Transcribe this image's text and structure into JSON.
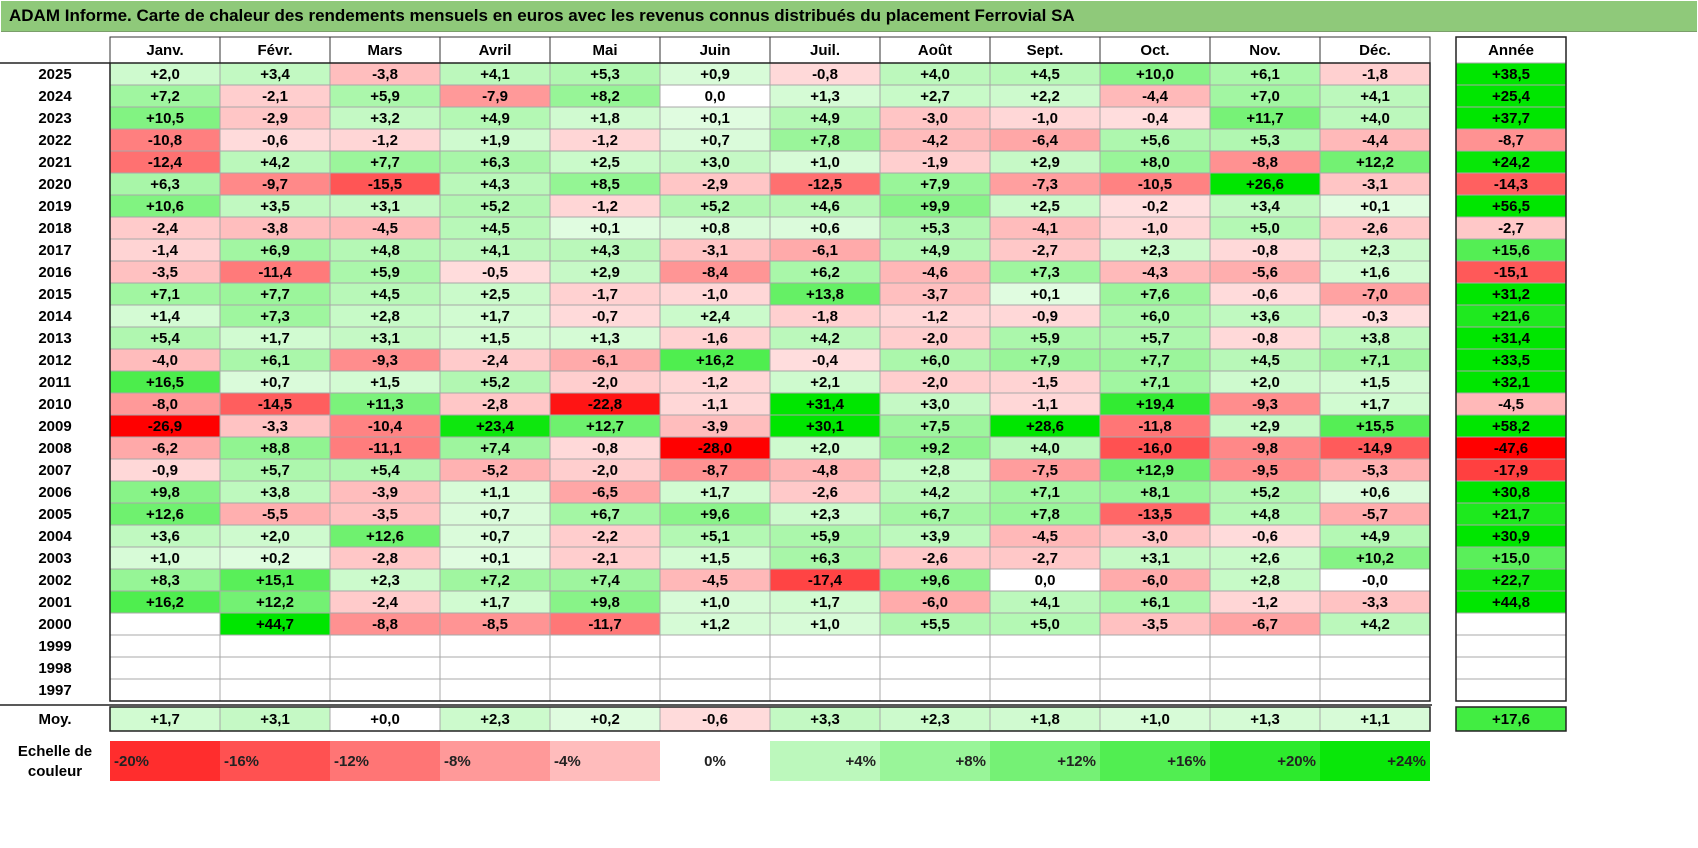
{
  "title": "ADAM Informe. Carte de chaleur des rendements mensuels en euros avec les revenus connus distribués du placement Ferrovial SA",
  "chart_data": {
    "type": "heatmap",
    "months": [
      "Janv.",
      "Févr.",
      "Mars",
      "Avril",
      "Mai",
      "Juin",
      "Juil.",
      "Août",
      "Sept.",
      "Oct.",
      "Nov.",
      "Déc."
    ],
    "annual_header": "Année",
    "rows": [
      {
        "year": "2025",
        "values": [
          "+2,0",
          "+3,4",
          "-3,8",
          "+4,1",
          "+5,3",
          "+0,9",
          "-0,8",
          "+4,0",
          "+4,5",
          "+10,0",
          "+6,1",
          "-1,8"
        ],
        "annual": "+38,5"
      },
      {
        "year": "2024",
        "values": [
          "+7,2",
          "-2,1",
          "+5,9",
          "-7,9",
          "+8,2",
          "0,0",
          "+1,3",
          "+2,7",
          "+2,2",
          "-4,4",
          "+7,0",
          "+4,1"
        ],
        "annual": "+25,4"
      },
      {
        "year": "2023",
        "values": [
          "+10,5",
          "-2,9",
          "+3,2",
          "+4,9",
          "+1,8",
          "+0,1",
          "+4,9",
          "-3,0",
          "-1,0",
          "-0,4",
          "+11,7",
          "+4,0"
        ],
        "annual": "+37,7"
      },
      {
        "year": "2022",
        "values": [
          "-10,8",
          "-0,6",
          "-1,2",
          "+1,9",
          "-1,2",
          "+0,7",
          "+7,8",
          "-4,2",
          "-6,4",
          "+5,6",
          "+5,3",
          "-4,4"
        ],
        "annual": "-8,7"
      },
      {
        "year": "2021",
        "values": [
          "-12,4",
          "+4,2",
          "+7,7",
          "+6,3",
          "+2,5",
          "+3,0",
          "+1,0",
          "-1,9",
          "+2,9",
          "+8,0",
          "-8,8",
          "+12,2"
        ],
        "annual": "+24,2"
      },
      {
        "year": "2020",
        "values": [
          "+6,3",
          "-9,7",
          "-15,5",
          "+4,3",
          "+8,5",
          "-2,9",
          "-12,5",
          "+7,9",
          "-7,3",
          "-10,5",
          "+26,6",
          "-3,1"
        ],
        "annual": "-14,3"
      },
      {
        "year": "2019",
        "values": [
          "+10,6",
          "+3,5",
          "+3,1",
          "+5,2",
          "-1,2",
          "+5,2",
          "+4,6",
          "+9,9",
          "+2,5",
          "-0,2",
          "+3,4",
          "+0,1"
        ],
        "annual": "+56,5"
      },
      {
        "year": "2018",
        "values": [
          "-2,4",
          "-3,8",
          "-4,5",
          "+4,5",
          "+0,1",
          "+0,8",
          "+0,6",
          "+5,3",
          "-4,1",
          "-1,0",
          "+5,0",
          "-2,6"
        ],
        "annual": "-2,7"
      },
      {
        "year": "2017",
        "values": [
          "-1,4",
          "+6,9",
          "+4,8",
          "+4,1",
          "+4,3",
          "-3,1",
          "-6,1",
          "+4,9",
          "-2,7",
          "+2,3",
          "-0,8",
          "+2,3"
        ],
        "annual": "+15,6"
      },
      {
        "year": "2016",
        "values": [
          "-3,5",
          "-11,4",
          "+5,9",
          "-0,5",
          "+2,9",
          "-8,4",
          "+6,2",
          "-4,6",
          "+7,3",
          "-4,3",
          "-5,6",
          "+1,6"
        ],
        "annual": "-15,1"
      },
      {
        "year": "2015",
        "values": [
          "+7,1",
          "+7,7",
          "+4,5",
          "+2,5",
          "-1,7",
          "-1,0",
          "+13,8",
          "-3,7",
          "+0,1",
          "+7,6",
          "-0,6",
          "-7,0"
        ],
        "annual": "+31,2"
      },
      {
        "year": "2014",
        "values": [
          "+1,4",
          "+7,3",
          "+2,8",
          "+1,7",
          "-0,7",
          "+2,4",
          "-1,8",
          "-1,2",
          "-0,9",
          "+6,0",
          "+3,6",
          "-0,3"
        ],
        "annual": "+21,6"
      },
      {
        "year": "2013",
        "values": [
          "+5,4",
          "+1,7",
          "+3,1",
          "+1,5",
          "+1,3",
          "-1,6",
          "+4,2",
          "-2,0",
          "+5,9",
          "+5,7",
          "-0,8",
          "+3,8"
        ],
        "annual": "+31,4"
      },
      {
        "year": "2012",
        "values": [
          "-4,0",
          "+6,1",
          "-9,3",
          "-2,4",
          "-6,1",
          "+16,2",
          "-0,4",
          "+6,0",
          "+7,9",
          "+7,7",
          "+4,5",
          "+7,1"
        ],
        "annual": "+33,5"
      },
      {
        "year": "2011",
        "values": [
          "+16,5",
          "+0,7",
          "+1,5",
          "+5,2",
          "-2,0",
          "-1,2",
          "+2,1",
          "-2,0",
          "-1,5",
          "+7,1",
          "+2,0",
          "+1,5"
        ],
        "annual": "+32,1"
      },
      {
        "year": "2010",
        "values": [
          "-8,0",
          "-14,5",
          "+11,3",
          "-2,8",
          "-22,8",
          "-1,1",
          "+31,4",
          "+3,0",
          "-1,1",
          "+19,4",
          "-9,3",
          "+1,7"
        ],
        "annual": "-4,5"
      },
      {
        "year": "2009",
        "values": [
          "-26,9",
          "-3,3",
          "-10,4",
          "+23,4",
          "+12,7",
          "-3,9",
          "+30,1",
          "+7,5",
          "+28,6",
          "-11,8",
          "+2,9",
          "+15,5"
        ],
        "annual": "+58,2"
      },
      {
        "year": "2008",
        "values": [
          "-6,2",
          "+8,8",
          "-11,1",
          "+7,4",
          "-0,8",
          "-28,0",
          "+2,0",
          "+9,2",
          "+4,0",
          "-16,0",
          "-9,8",
          "-14,9"
        ],
        "annual": "-47,6"
      },
      {
        "year": "2007",
        "values": [
          "-0,9",
          "+5,7",
          "+5,4",
          "-5,2",
          "-2,0",
          "-8,7",
          "-4,8",
          "+2,8",
          "-7,5",
          "+12,9",
          "-9,5",
          "-5,3"
        ],
        "annual": "-17,9"
      },
      {
        "year": "2006",
        "values": [
          "+9,8",
          "+3,8",
          "-3,9",
          "+1,1",
          "-6,5",
          "+1,7",
          "-2,6",
          "+4,2",
          "+7,1",
          "+8,1",
          "+5,2",
          "+0,6"
        ],
        "annual": "+30,8"
      },
      {
        "year": "2005",
        "values": [
          "+12,6",
          "-5,5",
          "-3,5",
          "+0,7",
          "+6,7",
          "+9,6",
          "+2,3",
          "+6,7",
          "+7,8",
          "-13,5",
          "+4,8",
          "-5,7"
        ],
        "annual": "+21,7"
      },
      {
        "year": "2004",
        "values": [
          "+3,6",
          "+2,0",
          "+12,6",
          "+0,7",
          "-2,2",
          "+5,1",
          "+5,9",
          "+3,9",
          "-4,5",
          "-3,0",
          "-0,6",
          "+4,9"
        ],
        "annual": "+30,9"
      },
      {
        "year": "2003",
        "values": [
          "+1,0",
          "+0,2",
          "-2,8",
          "+0,1",
          "-2,1",
          "+1,5",
          "+6,3",
          "-2,6",
          "-2,7",
          "+3,1",
          "+2,6",
          "+10,2"
        ],
        "annual": "+15,0"
      },
      {
        "year": "2002",
        "values": [
          "+8,3",
          "+15,1",
          "+2,3",
          "+7,2",
          "+7,4",
          "-4,5",
          "-17,4",
          "+9,6",
          "0,0",
          "-6,0",
          "+2,8",
          "-0,0"
        ],
        "annual": "+22,7"
      },
      {
        "year": "2001",
        "values": [
          "+16,2",
          "+12,2",
          "-2,4",
          "+1,7",
          "+9,8",
          "+1,0",
          "+1,7",
          "-6,0",
          "+4,1",
          "+6,1",
          "-1,2",
          "-3,3"
        ],
        "annual": "+44,8"
      },
      {
        "year": "2000",
        "values": [
          "",
          "+44,7",
          "-8,8",
          "-8,5",
          "-11,7",
          "+1,2",
          "+1,0",
          "+5,5",
          "+5,0",
          "-3,5",
          "-6,7",
          "+4,2"
        ],
        "annual": ""
      },
      {
        "year": "1999",
        "values": [
          "",
          "",
          "",
          "",
          "",
          "",
          "",
          "",
          "",
          "",
          "",
          ""
        ],
        "annual": ""
      },
      {
        "year": "1998",
        "values": [
          "",
          "",
          "",
          "",
          "",
          "",
          "",
          "",
          "",
          "",
          "",
          ""
        ],
        "annual": ""
      },
      {
        "year": "1997",
        "values": [
          "",
          "",
          "",
          "",
          "",
          "",
          "",
          "",
          "",
          "",
          "",
          ""
        ],
        "annual": ""
      }
    ],
    "average": {
      "label": "Moy.",
      "values": [
        "+1,7",
        "+3,1",
        "+0,0",
        "+2,3",
        "+0,2",
        "-0,6",
        "+3,3",
        "+2,3",
        "+1,8",
        "+1,0",
        "+1,3",
        "+1,1"
      ],
      "annual": "+17,6"
    },
    "scale": {
      "label_line1": "Echelle de",
      "label_line2": "couleur",
      "items": [
        {
          "label": "-20%",
          "value": -20
        },
        {
          "label": "-16%",
          "value": -16
        },
        {
          "label": "-12%",
          "value": -12
        },
        {
          "label": "-8%",
          "value": -8
        },
        {
          "label": "-4%",
          "value": -4
        },
        {
          "label": "0%",
          "value": 0
        },
        {
          "label": "+4%",
          "value": 4
        },
        {
          "label": "+8%",
          "value": 8
        },
        {
          "label": "+12%",
          "value": 12
        },
        {
          "label": "+16%",
          "value": 16
        },
        {
          "label": "+20%",
          "value": 20
        },
        {
          "label": "+24%",
          "value": 24
        }
      ]
    },
    "colors": {
      "negative_full": "#ff0000",
      "neutral": "#ffffff",
      "positive_full": "#00e600",
      "title_bar": "#8fc97a"
    }
  }
}
